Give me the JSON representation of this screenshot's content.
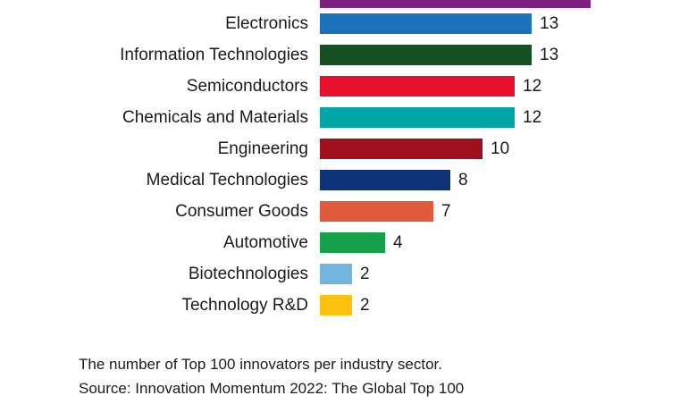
{
  "chart_data": {
    "type": "bar",
    "orientation": "horizontal",
    "categories": [
      "Electronics",
      "Information Technologies",
      "Semiconductors",
      "Chemicals and Materials",
      "Engineering",
      "Medical Technologies",
      "Consumer Goods",
      "Automotive",
      "Biotechnologies",
      "Technology R&D"
    ],
    "values": [
      13,
      13,
      12,
      12,
      10,
      8,
      7,
      4,
      2,
      2
    ],
    "bar_colors": [
      "#1d71b8",
      "#154f23",
      "#e8112d",
      "#00a3a6",
      "#a00f1d",
      "#0d3278",
      "#e05a3c",
      "#15a04a",
      "#72b5de",
      "#fcc20d"
    ],
    "value_labels_shown": true,
    "grid": false,
    "legend": "none",
    "xlim": [
      0,
      17
    ],
    "partial_top_bar_color": "#7c217f",
    "caption_line1": "The number of Top 100 innovators per industry sector.",
    "caption_line2": "Source: Innovation Momentum 2022: The Global Top 100"
  }
}
